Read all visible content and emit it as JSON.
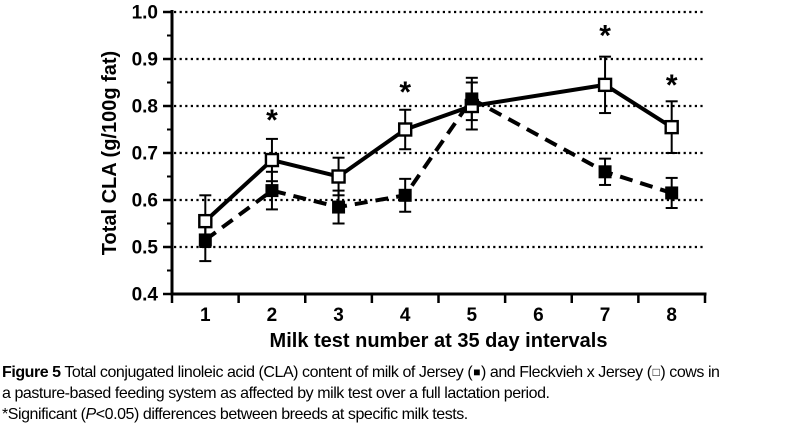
{
  "figure": {
    "caption": {
      "figure_label": "Figure 5",
      "line1_a": " Total conjugated linoleic acid (CLA) content of milk of Jersey (",
      "filled_square": "■",
      "line1_b": ") and Fleckvieh x Jersey (",
      "open_square": "□",
      "line1_c": ") cows in",
      "line2": "a pasture-based feeding system as affected by milk test over a full lactation period.",
      "line3_a": "*Significant (",
      "line3_p": "P",
      "line3_b": "<0.05) differences between breeds at specific milk tests."
    }
  },
  "chart_data": {
    "type": "line",
    "title": "",
    "xlabel": "Milk test number at 35 day intervals",
    "ylabel": "Total CLA (g/100g fat)",
    "ylim": [
      0.4,
      1.0
    ],
    "grid": "horizontal-dotted",
    "legend_position": "none",
    "x": [
      1,
      2,
      3,
      4,
      5,
      6,
      7,
      8
    ],
    "xticks": [
      "1",
      "2",
      "3",
      "4",
      "5",
      "6",
      "7",
      "8"
    ],
    "yticks": [
      "0.4",
      "0.5",
      "0.6",
      "0.7",
      "0.8",
      "0.9",
      "1.0"
    ],
    "series": [
      {
        "name": "Fleckvieh x Jersey",
        "marker": "open-square",
        "line": "solid",
        "values": [
          0.555,
          0.685,
          0.65,
          0.75,
          0.8,
          null,
          0.845,
          0.755
        ],
        "errors": [
          0.055,
          0.045,
          0.04,
          0.042,
          0.05,
          null,
          0.06,
          0.055
        ]
      },
      {
        "name": "Jersey",
        "marker": "filled-square",
        "line": "dashed",
        "values": [
          0.515,
          0.62,
          0.585,
          0.61,
          0.815,
          null,
          0.66,
          0.615
        ],
        "errors": [
          0.045,
          0.04,
          0.035,
          0.035,
          0.045,
          null,
          0.028,
          0.032
        ]
      }
    ],
    "annotations": [
      {
        "x": 2,
        "y": 0.77,
        "text": "*"
      },
      {
        "x": 4,
        "y": 0.83,
        "text": "*"
      },
      {
        "x": 7,
        "y": 0.95,
        "text": "*"
      },
      {
        "x": 8,
        "y": 0.845,
        "text": "*"
      }
    ],
    "colors": {
      "line": "#000000",
      "grid": "#000000",
      "background": "#ffffff"
    }
  }
}
